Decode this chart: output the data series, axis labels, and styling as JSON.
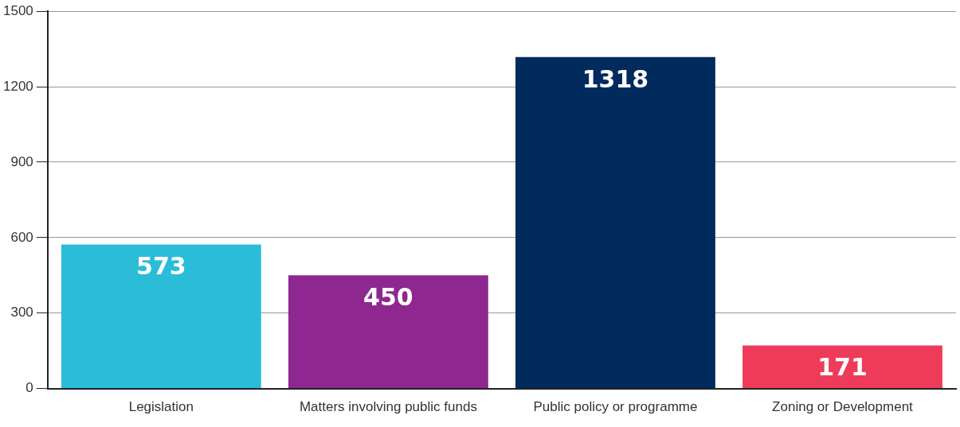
{
  "chart_data": {
    "type": "bar",
    "categories": [
      "Legislation",
      "Matters involving public funds",
      "Public policy or programme",
      "Zoning or Development"
    ],
    "values": [
      573,
      450,
      1318,
      171
    ],
    "colors": [
      "#2bbcd8",
      "#8e278f",
      "#002b5c",
      "#ef3b5a"
    ],
    "ylim": [
      0,
      1500
    ],
    "yticks": [
      0,
      300,
      600,
      900,
      1200,
      1500
    ],
    "grid": "y",
    "data_labels": true,
    "legend": false
  }
}
